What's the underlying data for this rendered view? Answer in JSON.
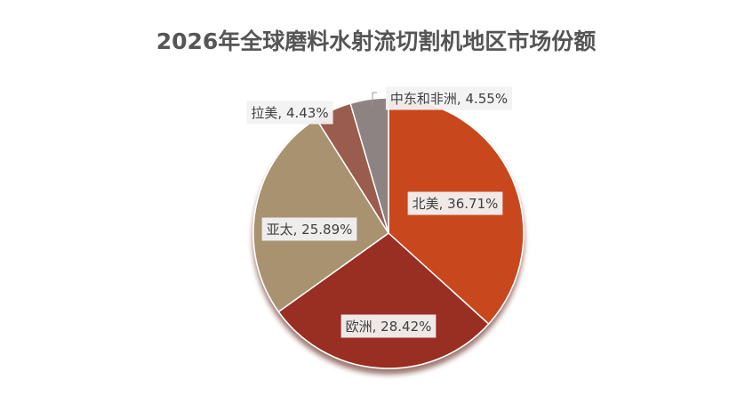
{
  "chart_data": {
    "type": "pie",
    "title": "2026年全球磨料水射流切割机地区市场份额",
    "categories": [
      "北美",
      "欧洲",
      "亚太",
      "拉美",
      "中东和非洲"
    ],
    "values": [
      36.71,
      28.42,
      25.89,
      4.43,
      4.55
    ],
    "value_labels": [
      "36.71%",
      "28.42%",
      "25.89%",
      "4.43%",
      "4.55%"
    ],
    "label_separator": ", ",
    "colors": [
      "#c9461d",
      "#992d22",
      "#a89270",
      "#9a5d4e",
      "#8e8383"
    ]
  }
}
